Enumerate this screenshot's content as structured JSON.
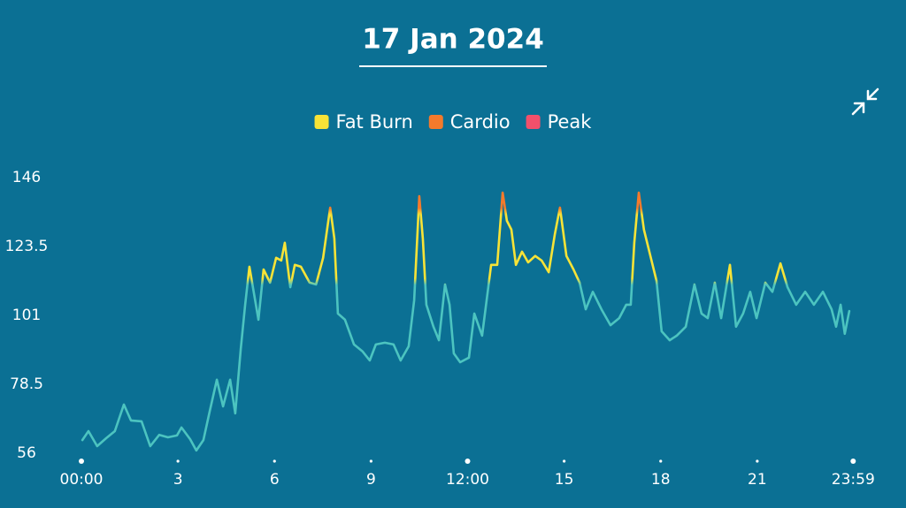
{
  "chart_data": {
    "type": "line",
    "title": "17 Jan 2024",
    "color": "#4cc4c0",
    "zones": [
      {
        "name": "Fat Burn",
        "color": "#f7e337",
        "min": 112
      },
      {
        "name": "Cardio",
        "color": "#f47a2c",
        "min": 135
      },
      {
        "name": "Peak",
        "color": "#f2506b"
      }
    ],
    "xlim": [
      0,
      24
    ],
    "xticks": [
      {
        "value": 0,
        "label": "00:00"
      },
      3,
      6,
      9,
      {
        "value": 12,
        "label": "12:00"
      },
      15,
      18,
      21,
      {
        "value": 23.98,
        "label": "23:59"
      }
    ],
    "ylim": [
      56,
      146
    ],
    "yticks": [
      56,
      78.5,
      101,
      123.5,
      146
    ],
    "x": [
      0.03,
      0.22,
      0.49,
      0.77,
      1.04,
      1.32,
      1.54,
      1.87,
      2.14,
      2.42,
      2.69,
      2.97,
      3.11,
      3.38,
      3.57,
      3.79,
      3.99,
      4.21,
      4.4,
      4.62,
      4.78,
      4.95,
      5.09,
      5.22,
      5.5,
      5.66,
      5.86,
      6.05,
      6.21,
      6.32,
      6.49,
      6.63,
      6.82,
      7.09,
      7.29,
      7.51,
      7.73,
      7.86,
      7.97,
      8.19,
      8.47,
      8.74,
      8.96,
      9.15,
      9.43,
      9.7,
      9.92,
      10.17,
      10.34,
      10.5,
      10.61,
      10.72,
      10.94,
      11.11,
      11.3,
      11.44,
      11.57,
      11.77,
      12.04,
      12.21,
      12.45,
      12.73,
      12.92,
      13.09,
      13.22,
      13.36,
      13.5,
      13.69,
      13.88,
      14.1,
      14.3,
      14.52,
      14.71,
      14.87,
      15.07,
      15.29,
      15.48,
      15.67,
      15.89,
      16.16,
      16.44,
      16.71,
      16.93,
      17.07,
      17.18,
      17.32,
      17.48,
      17.68,
      17.87,
      18.03,
      18.28,
      18.5,
      18.78,
      19.05,
      19.27,
      19.46,
      19.68,
      19.88,
      20.15,
      20.34,
      20.56,
      20.78,
      20.98,
      21.25,
      21.47,
      21.72,
      21.94,
      22.21,
      22.49,
      22.76,
      23.04,
      23.31,
      23.45,
      23.59,
      23.72,
      23.86
    ],
    "values": [
      60.3,
      63.2,
      58.3,
      60.9,
      63.2,
      71.9,
      66.7,
      66.4,
      58.3,
      62,
      61.2,
      61.8,
      64.4,
      60.6,
      56.9,
      60.3,
      69.8,
      80,
      71.3,
      80,
      69,
      90,
      104.5,
      116.9,
      99.6,
      116,
      111.7,
      119.8,
      118.9,
      124.7,
      110.2,
      117.5,
      116.9,
      111.7,
      111.1,
      119.8,
      136.2,
      126.1,
      101.6,
      99.6,
      91.5,
      89.2,
      86.3,
      91.5,
      92.1,
      91.5,
      86.3,
      90.9,
      105.9,
      139.9,
      126.1,
      104.5,
      97.3,
      92.9,
      111.1,
      104.5,
      88.6,
      85.7,
      87.2,
      101.6,
      94.4,
      117.5,
      117.5,
      141.1,
      131.9,
      129,
      117.5,
      121.8,
      118.3,
      120.4,
      118.9,
      115.1,
      127.5,
      136.2,
      120.4,
      116,
      111.7,
      103,
      108.7,
      103,
      97.8,
      100.1,
      104.5,
      104.5,
      124.7,
      141.1,
      129,
      120.4,
      112.3,
      95.8,
      92.9,
      94.4,
      97.3,
      111.1,
      101.6,
      100.1,
      111.7,
      100.1,
      117.5,
      97.3,
      101.6,
      108.7,
      100.1,
      111.7,
      108.7,
      118,
      110.2,
      104.5,
      108.7,
      104.5,
      108.7,
      103,
      97.3,
      104.5,
      95,
      102.4
    ]
  }
}
